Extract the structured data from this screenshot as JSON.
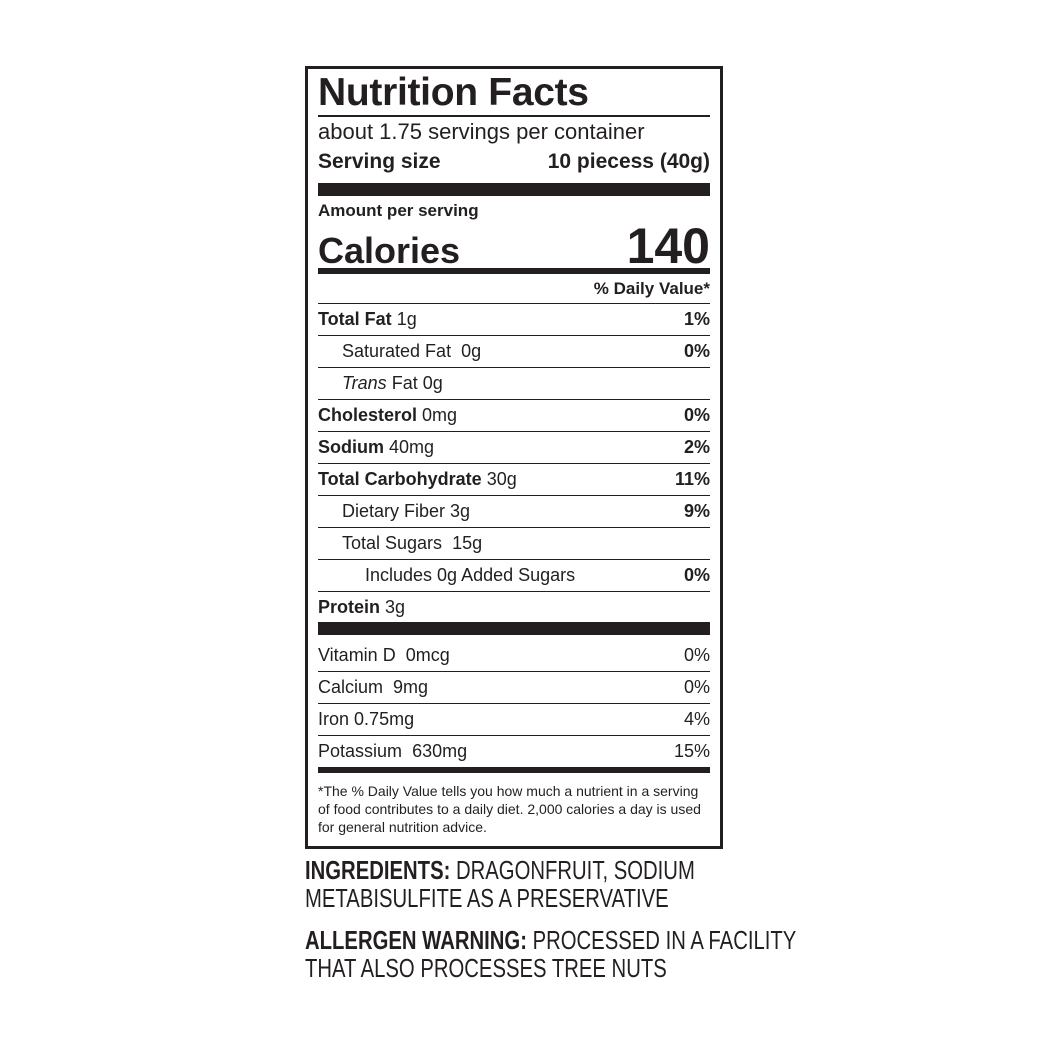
{
  "title": "Nutrition Facts",
  "servings_per_container": "about 1.75 servings per container",
  "serving_size_label": "Serving size",
  "serving_size_value": "10 piecess (40g)",
  "amount_per_serving": "Amount per serving",
  "calories_label": "Calories",
  "calories_value": "140",
  "daily_value_header": "% Daily Value*",
  "nutrients": [
    {
      "name": "Total Fat",
      "amount": "1g",
      "dv": "1%"
    },
    {
      "name": "Saturated Fat",
      "amount": "0g",
      "dv": "0%"
    },
    {
      "name": "Trans",
      "amount": "Fat 0g",
      "dv": ""
    },
    {
      "name": "Cholesterol",
      "amount": "0mg",
      "dv": "0%"
    },
    {
      "name": "Sodium",
      "amount": "40mg",
      "dv": "2%"
    },
    {
      "name": "Total Carbohydrate",
      "amount": "30g",
      "dv": "11%"
    },
    {
      "name": "Dietary Fiber",
      "amount": "3g",
      "dv": "9%"
    },
    {
      "name": "Total Sugars",
      "amount": "15g",
      "dv": ""
    },
    {
      "name": "Includes 0g Added Sugars",
      "amount": "",
      "dv": "0%"
    },
    {
      "name": "Protein",
      "amount": "3g",
      "dv": ""
    }
  ],
  "vitamins": [
    {
      "name": "Vitamin D",
      "amount": "0mcg",
      "dv": "0%"
    },
    {
      "name": "Calcium",
      "amount": "9mg",
      "dv": "0%"
    },
    {
      "name": "Iron",
      "amount": "0.75mg",
      "dv": "4%"
    },
    {
      "name": "Potassium",
      "amount": "630mg",
      "dv": "15%"
    }
  ],
  "footnote": "*The % Daily Value tells you how much a nutrient in a serving of food contributes to a daily diet. 2,000 calories a day is used for general nutrition advice.",
  "ingredients": {
    "label": "INGREDIENTS:",
    "line1": "DRAGONFRUIT, SODIUM",
    "line2": "METABISULFITE AS A PRESERVATIVE"
  },
  "allergen": {
    "label": "ALLERGEN WARNING:",
    "line1": "PROCESSED IN A FACILITY",
    "line2": "THAT ALSO PROCESSES TREE NUTS"
  }
}
